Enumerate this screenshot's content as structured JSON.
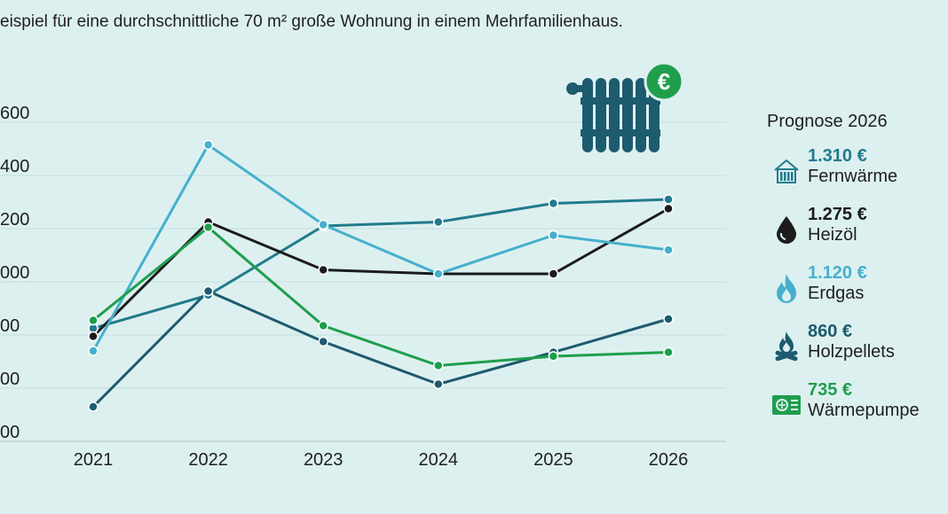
{
  "subtitle": "eispiel für eine durchschnittliche 70 m² große Wohnung in einem Mehrfamilienhaus.",
  "chart_data": {
    "type": "line",
    "x": [
      "2021",
      "2022",
      "2023",
      "2024",
      "2025",
      "2026"
    ],
    "ytick_labels": [
      "600",
      "400",
      "200",
      "000",
      "00",
      "00",
      "00"
    ],
    "ylim": [
      400,
      1600
    ],
    "grid": true,
    "series": [
      {
        "name": "Fernwärme",
        "color": "#217b8c",
        "values": [
          825,
          950,
          1210,
          1225,
          1295,
          1310
        ]
      },
      {
        "name": "Heizöl",
        "color": "#1c1c1c",
        "values": [
          795,
          1225,
          1045,
          1030,
          1030,
          1275
        ]
      },
      {
        "name": "Erdgas",
        "color": "#45b0cc",
        "values": [
          740,
          1515,
          1215,
          1030,
          1175,
          1120
        ]
      },
      {
        "name": "Holzpellets",
        "color": "#1d5b6e",
        "values": [
          530,
          965,
          775,
          615,
          735,
          860
        ]
      },
      {
        "name": "Wärmepumpe",
        "color": "#1f9e4c",
        "values": [
          855,
          1205,
          835,
          685,
          720,
          735
        ]
      }
    ]
  },
  "legend": {
    "title": "Prognose 2026",
    "items": [
      {
        "value": "1.310 €",
        "label": "Fernwärme",
        "color": "#217b8c",
        "icon": "district-heating-icon"
      },
      {
        "value": "1.275 €",
        "label": "Heizöl",
        "color": "#1c1c1c",
        "icon": "oil-drop-icon"
      },
      {
        "value": "1.120 €",
        "label": "Erdgas",
        "color": "#45b0cc",
        "icon": "gas-flame-icon"
      },
      {
        "value": "860 €",
        "label": "Holzpellets",
        "color": "#1d5b6e",
        "icon": "wood-fire-icon"
      },
      {
        "value": "735 €",
        "label": "Wärmepumpe",
        "color": "#1f9e4c",
        "icon": "heat-pump-icon"
      }
    ]
  },
  "radiator": {
    "badge": "€",
    "icon": "radiator-icon",
    "badge_color": "#1f9e4c",
    "color": "#1d5b6e"
  }
}
